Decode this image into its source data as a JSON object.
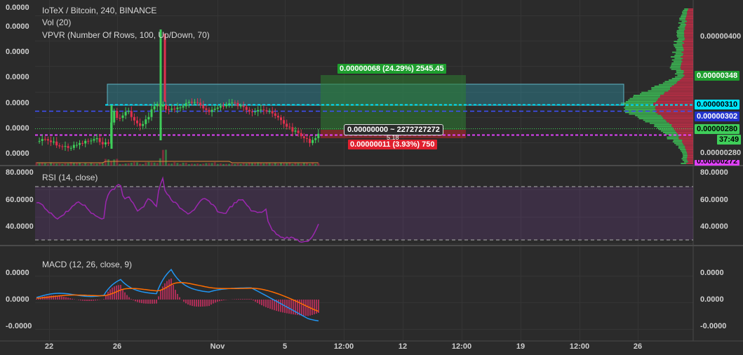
{
  "header": {
    "symbol_line": "IoTeX / Bitcoin, 240, BINANCE",
    "vol_line": "Vol (20)",
    "vpvr_line": "VPVR (Number Of Rows, 100, Up/Down, 70)"
  },
  "price_axis_left": [
    "0.0000",
    "0.0000",
    "0.0000",
    "0.0000",
    "0.0000",
    "0.0000",
    "0.0000"
  ],
  "price_axis_right": {
    "tick_top": "0.00000400",
    "tag_348": "0.00000348",
    "tag_310": "0.00000310",
    "tag_302": "0.00000302",
    "tag_280a": "0.00000280",
    "timer": "37:49",
    "tick_280b": "0.00000280",
    "tag_272": "0.00000272"
  },
  "position_tool": {
    "profit_label": "0.00000068 (24.29%) 2545.45",
    "center_label": "0.00000000 ~ 2272727272",
    "center_sub": "5.18",
    "loss_label": "0.00000011 (3.93%) 750"
  },
  "rsi": {
    "title": "RSI (14, close)",
    "left_ticks": [
      "80.0000",
      "60.0000",
      "40.0000"
    ],
    "right_ticks": [
      "80.0000",
      "60.0000",
      "40.0000"
    ]
  },
  "macd": {
    "title": "MACD (12, 26, close, 9)",
    "left_ticks": [
      "0.0000",
      "0.0000",
      "-0.0000"
    ],
    "right_ticks": [
      "0.0000",
      "0.0000",
      "-0.0000"
    ]
  },
  "time_axis": [
    "22",
    "26",
    "Nov",
    "5",
    "12:00",
    "12",
    "12:00",
    "19",
    "12:00",
    "26"
  ],
  "colors": {
    "background": "#2b2b2b",
    "up": "#3fce5a",
    "down": "#e0304e",
    "profit_zone": "#2e7d32",
    "loss_zone": "#c62828",
    "entry_line": "#00e5ff",
    "stop_line": "#e040fb",
    "rsi_line": "#9c27b0",
    "macd_line": "#2196f3",
    "signal_line": "#ff6d00"
  }
}
